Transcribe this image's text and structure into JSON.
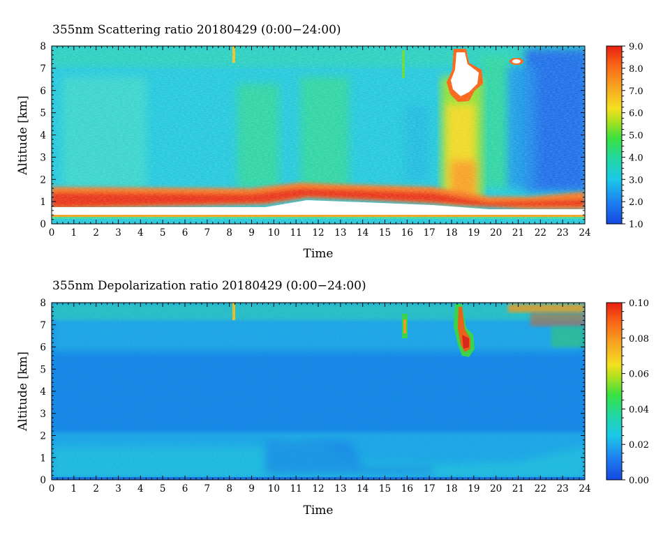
{
  "chart_data": [
    {
      "type": "heatmap",
      "title": "355nm Scattering ratio  20180429 (0:00−24:00)",
      "xlabel": "Time",
      "ylabel": "Altitude [km]",
      "xlim": [
        0,
        24
      ],
      "ylim": [
        0,
        8
      ],
      "x_ticks": [
        "0",
        "1",
        "2",
        "3",
        "4",
        "5",
        "6",
        "7",
        "8",
        "9",
        "10",
        "11",
        "12",
        "13",
        "14",
        "15",
        "16",
        "17",
        "18",
        "19",
        "20",
        "21",
        "22",
        "23",
        "24"
      ],
      "y_ticks": [
        "0",
        "1",
        "2",
        "3",
        "4",
        "5",
        "6",
        "7",
        "8"
      ],
      "colorbar": {
        "range": [
          1.0,
          9.0
        ],
        "ticks": [
          "1.0",
          "2.0",
          "3.0",
          "4.0",
          "5.0",
          "6.0",
          "7.0",
          "8.0",
          "9.0"
        ]
      },
      "features": [
        {
          "x_range": [
            0,
            24
          ],
          "y_range": [
            0.8,
            1.7
          ],
          "value": 8.0
        },
        {
          "x_range": [
            17.5,
            19.2
          ],
          "y_range": [
            5.8,
            8.0
          ],
          "value": 9.0
        },
        {
          "x_range": [
            17.6,
            19.0
          ],
          "y_range": [
            1.0,
            5.8
          ],
          "value": 6.0
        },
        {
          "x_range": [
            21.0,
            24.0
          ],
          "y_range": [
            1.5,
            8.0
          ],
          "value": 2.0
        }
      ]
    },
    {
      "type": "heatmap",
      "title": "355nm Depolarization ratio  20180429 (0:00−24:00)",
      "xlabel": "Time",
      "ylabel": "Altitude [km]",
      "xlim": [
        0,
        24
      ],
      "ylim": [
        0,
        8
      ],
      "x_ticks": [
        "0",
        "1",
        "2",
        "3",
        "4",
        "5",
        "6",
        "7",
        "8",
        "9",
        "10",
        "11",
        "12",
        "13",
        "14",
        "15",
        "16",
        "17",
        "18",
        "19",
        "20",
        "21",
        "22",
        "23",
        "24"
      ],
      "y_ticks": [
        "0",
        "1",
        "2",
        "3",
        "4",
        "5",
        "6",
        "7",
        "8"
      ],
      "colorbar": {
        "range": [
          0.0,
          0.1
        ],
        "ticks": [
          "0.00",
          "0.02",
          "0.04",
          "0.06",
          "0.08",
          "0.10"
        ]
      },
      "features": [
        {
          "x_range": [
            18.0,
            19.0
          ],
          "y_range": [
            5.6,
            8.0
          ],
          "value": 0.08
        },
        {
          "x_range": [
            20.5,
            24.0
          ],
          "y_range": [
            6.5,
            8.0
          ],
          "value": 0.07
        },
        {
          "x_range": [
            0,
            24
          ],
          "y_range": [
            0,
            2.0
          ],
          "value": 0.018
        }
      ]
    }
  ]
}
